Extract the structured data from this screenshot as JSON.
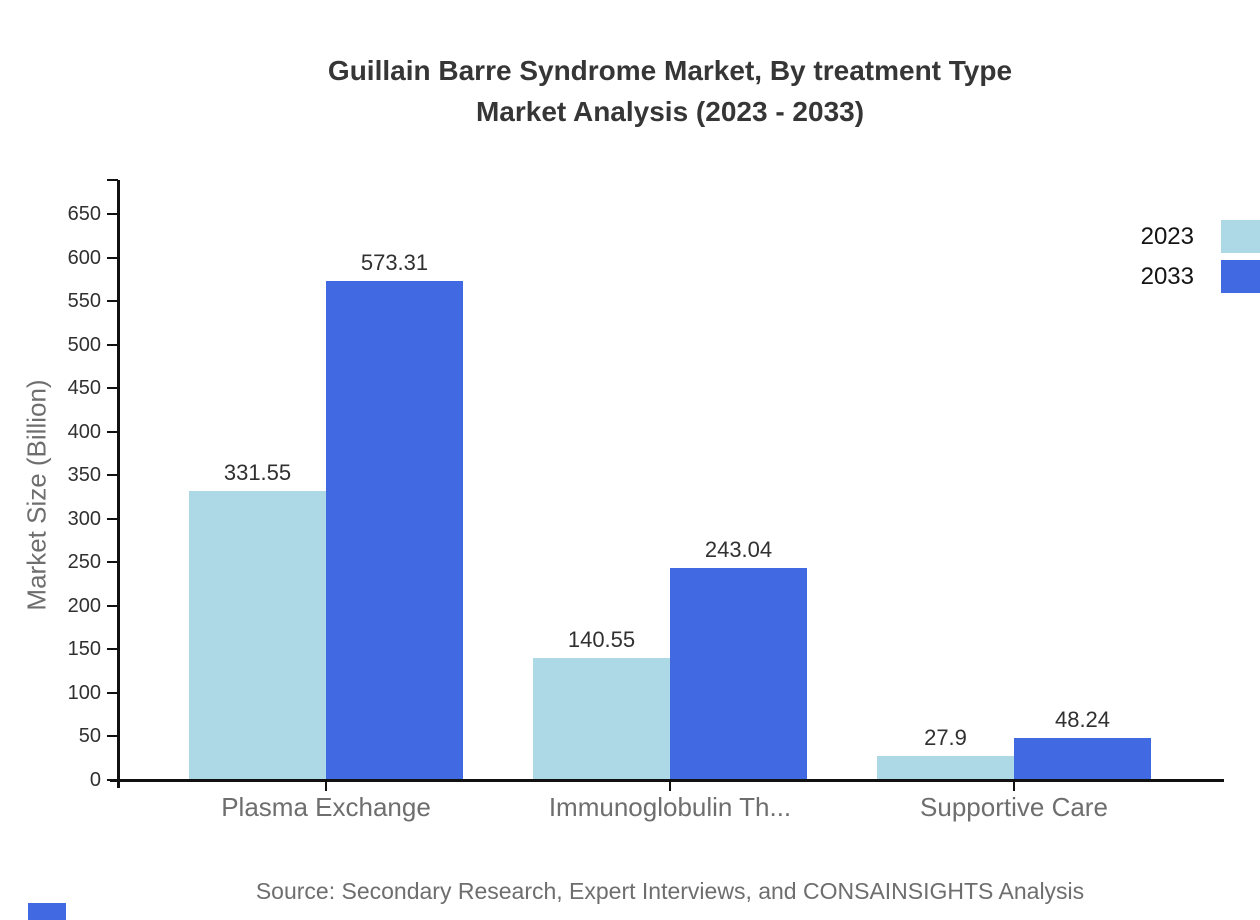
{
  "title": {
    "line1": "Guillain Barre Syndrome Market, By treatment Type",
    "line2": "Market Analysis (2023 - 2033)"
  },
  "y_axis": {
    "label": "Market Size (Billion)"
  },
  "legend": {
    "items": [
      {
        "label": "2023",
        "color": "#ADD8E6"
      },
      {
        "label": "2033",
        "color": "#4169E1"
      }
    ]
  },
  "source_note": "Source: Secondary Research, Expert Interviews, and CONSAINSIGHTS Analysis",
  "colors": {
    "series_2023": "#ADD8E6",
    "series_2033": "#4169E1",
    "axis": "#111111",
    "tick_text": "#303030",
    "muted_text": "#6e6e6e",
    "title_text": "#363636",
    "brand_mark": "#4169E1"
  },
  "chart_data": {
    "type": "bar",
    "title": "Guillain Barre Syndrome Market, By treatment Type Market Analysis (2023 - 2033)",
    "categories": [
      "Plasma Exchange",
      "Immunoglobulin Th...",
      "Supportive Care"
    ],
    "series": [
      {
        "name": "2023",
        "color": "#ADD8E6",
        "values": [
          331.55,
          140.55,
          27.9
        ],
        "value_labels": [
          "331.55",
          "140.55",
          "27.9"
        ]
      },
      {
        "name": "2033",
        "color": "#4169E1",
        "values": [
          573.31,
          243.04,
          48.24
        ],
        "value_labels": [
          "573.31",
          "243.04",
          "48.24"
        ]
      }
    ],
    "xlabel": "",
    "ylabel": "Market Size (Billion)",
    "ylim": [
      0,
      650
    ],
    "ytick_step": 50,
    "grid": false,
    "legend_position": "top-right",
    "bar_value_labels_shown": true
  }
}
